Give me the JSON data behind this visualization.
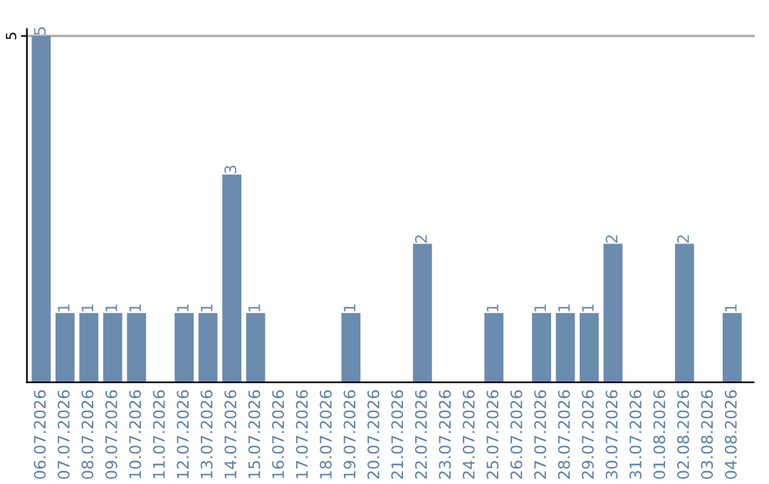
{
  "chart_data": {
    "type": "bar",
    "categories": [
      "06.07.2026",
      "07.07.2026",
      "08.07.2026",
      "09.07.2026",
      "10.07.2026",
      "11.07.2026",
      "12.07.2026",
      "13.07.2026",
      "14.07.2026",
      "15.07.2026",
      "16.07.2026",
      "17.07.2026",
      "18.07.2026",
      "19.07.2026",
      "20.07.2026",
      "21.07.2026",
      "22.07.2026",
      "23.07.2026",
      "24.07.2026",
      "25.07.2026",
      "26.07.2026",
      "27.07.2026",
      "28.07.2026",
      "29.07.2026",
      "30.07.2026",
      "31.07.2026",
      "01.08.2026",
      "02.08.2026",
      "03.08.2026",
      "04.08.2026"
    ],
    "values": [
      5,
      1,
      1,
      1,
      1,
      0,
      1,
      1,
      3,
      1,
      0,
      0,
      0,
      1,
      0,
      0,
      2,
      0,
      0,
      1,
      0,
      1,
      1,
      1,
      2,
      0,
      0,
      2,
      0,
      1
    ],
    "value_labels": [
      "5",
      "1",
      "1",
      "1",
      "1",
      null,
      "1",
      "1",
      "3",
      "1",
      null,
      null,
      null,
      "1",
      null,
      null,
      "2",
      null,
      null,
      "1",
      null,
      "1",
      "1",
      "1",
      "2",
      null,
      null,
      "2",
      null,
      "1"
    ],
    "color": "#6b8caf",
    "ylim": [
      0,
      5.1
    ],
    "yticks": [
      5
    ],
    "grid": "y"
  }
}
